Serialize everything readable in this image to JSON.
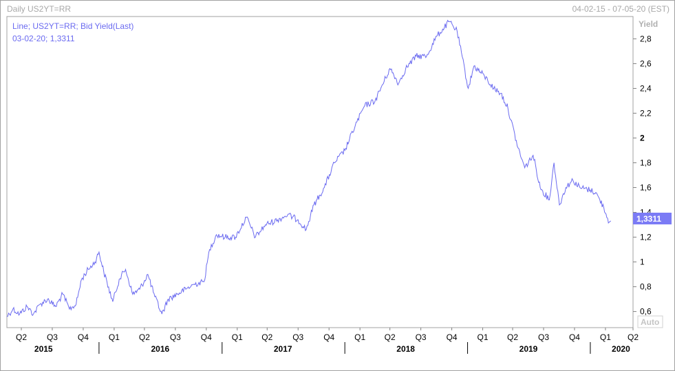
{
  "header": {
    "title": "Daily US2YT=RR",
    "date_range": "04-02-15 - 07-05-20 (EST)"
  },
  "legend": {
    "line1": "Line; US2YT=RR; Bid Yield(Last)",
    "line2": "03-02-20; 1,3311"
  },
  "y_axis": {
    "title": "Yield",
    "auto_label": "Auto",
    "current_value": "1,3311"
  },
  "colors": {
    "line": "#6a6af0",
    "value_box": "#7b7bf5",
    "header_text": "#a8a8a8"
  },
  "chart_data": {
    "type": "line",
    "series": [
      {
        "name": "US2YT=RR",
        "points": [
          [
            "2015-04-02",
            0.56
          ],
          [
            "2015-04-20",
            0.62
          ],
          [
            "2015-05-10",
            0.58
          ],
          [
            "2015-06-01",
            0.64
          ],
          [
            "2015-06-20",
            0.58
          ],
          [
            "2015-07-10",
            0.66
          ],
          [
            "2015-08-01",
            0.7
          ],
          [
            "2015-08-25",
            0.64
          ],
          [
            "2015-09-15",
            0.74
          ],
          [
            "2015-10-05",
            0.62
          ],
          [
            "2015-10-25",
            0.66
          ],
          [
            "2015-11-10",
            0.86
          ],
          [
            "2015-11-30",
            0.94
          ],
          [
            "2015-12-20",
            1.0
          ],
          [
            "2016-01-01",
            1.08
          ],
          [
            "2016-01-15",
            0.92
          ],
          [
            "2016-02-11",
            0.68
          ],
          [
            "2016-03-01",
            0.86
          ],
          [
            "2016-03-20",
            0.94
          ],
          [
            "2016-04-10",
            0.74
          ],
          [
            "2016-05-01",
            0.78
          ],
          [
            "2016-05-25",
            0.9
          ],
          [
            "2016-06-15",
            0.72
          ],
          [
            "2016-07-06",
            0.58
          ],
          [
            "2016-07-25",
            0.7
          ],
          [
            "2016-08-20",
            0.74
          ],
          [
            "2016-09-15",
            0.78
          ],
          [
            "2016-10-10",
            0.82
          ],
          [
            "2016-11-08",
            0.84
          ],
          [
            "2016-11-25",
            1.1
          ],
          [
            "2016-12-15",
            1.22
          ],
          [
            "2017-01-10",
            1.2
          ],
          [
            "2017-02-10",
            1.2
          ],
          [
            "2017-03-14",
            1.36
          ],
          [
            "2017-04-10",
            1.2
          ],
          [
            "2017-05-10",
            1.3
          ],
          [
            "2017-06-15",
            1.34
          ],
          [
            "2017-07-15",
            1.38
          ],
          [
            "2017-08-15",
            1.34
          ],
          [
            "2017-09-08",
            1.26
          ],
          [
            "2017-10-01",
            1.46
          ],
          [
            "2017-11-01",
            1.6
          ],
          [
            "2017-12-01",
            1.8
          ],
          [
            "2018-01-01",
            1.9
          ],
          [
            "2018-02-01",
            2.1
          ],
          [
            "2018-03-01",
            2.26
          ],
          [
            "2018-04-01",
            2.3
          ],
          [
            "2018-05-15",
            2.56
          ],
          [
            "2018-06-10",
            2.44
          ],
          [
            "2018-07-01",
            2.56
          ],
          [
            "2018-08-01",
            2.66
          ],
          [
            "2018-09-01",
            2.66
          ],
          [
            "2018-10-01",
            2.82
          ],
          [
            "2018-11-08",
            2.94
          ],
          [
            "2018-12-01",
            2.86
          ],
          [
            "2019-01-03",
            2.4
          ],
          [
            "2019-01-20",
            2.58
          ],
          [
            "2019-02-20",
            2.5
          ],
          [
            "2019-03-20",
            2.4
          ],
          [
            "2019-04-10",
            2.36
          ],
          [
            "2019-05-01",
            2.24
          ],
          [
            "2019-05-31",
            1.92
          ],
          [
            "2019-06-20",
            1.76
          ],
          [
            "2019-07-15",
            1.86
          ],
          [
            "2019-08-05",
            1.6
          ],
          [
            "2019-09-01",
            1.5
          ],
          [
            "2019-09-15",
            1.8
          ],
          [
            "2019-10-01",
            1.46
          ],
          [
            "2019-10-20",
            1.6
          ],
          [
            "2019-11-10",
            1.66
          ],
          [
            "2019-12-01",
            1.6
          ],
          [
            "2020-01-01",
            1.58
          ],
          [
            "2020-01-17",
            1.56
          ],
          [
            "2020-02-10",
            1.44
          ],
          [
            "2020-02-26",
            1.32
          ],
          [
            "2020-03-02",
            1.3311
          ]
        ]
      }
    ],
    "x_start": "2015-04-02",
    "x_end": "2020-05-07",
    "ylim": [
      0.47,
      2.98
    ],
    "yticks": [
      {
        "v": 0.6,
        "label": "0,6"
      },
      {
        "v": 0.8,
        "label": "0,8"
      },
      {
        "v": 1.0,
        "label": "1"
      },
      {
        "v": 1.2,
        "label": "1,2"
      },
      {
        "v": 1.4,
        "label": "1,4"
      },
      {
        "v": 1.6,
        "label": "1,6"
      },
      {
        "v": 1.8,
        "label": "1,8"
      },
      {
        "v": 2.0,
        "label": "2"
      },
      {
        "v": 2.2,
        "label": "2,2"
      },
      {
        "v": 2.4,
        "label": "2,4"
      },
      {
        "v": 2.6,
        "label": "2,6"
      },
      {
        "v": 2.8,
        "label": "2,8"
      }
    ],
    "quarter_ticks": [
      {
        "date": "2015-05-15",
        "label": "Q2"
      },
      {
        "date": "2015-08-15",
        "label": "Q3"
      },
      {
        "date": "2015-11-15",
        "label": "Q4"
      },
      {
        "date": "2016-02-15",
        "label": "Q1"
      },
      {
        "date": "2016-05-15",
        "label": "Q2"
      },
      {
        "date": "2016-08-15",
        "label": "Q3"
      },
      {
        "date": "2016-11-15",
        "label": "Q4"
      },
      {
        "date": "2017-02-15",
        "label": "Q1"
      },
      {
        "date": "2017-05-15",
        "label": "Q2"
      },
      {
        "date": "2017-08-15",
        "label": "Q3"
      },
      {
        "date": "2017-11-15",
        "label": "Q4"
      },
      {
        "date": "2018-02-15",
        "label": "Q1"
      },
      {
        "date": "2018-05-15",
        "label": "Q2"
      },
      {
        "date": "2018-08-15",
        "label": "Q3"
      },
      {
        "date": "2018-11-15",
        "label": "Q4"
      },
      {
        "date": "2019-02-15",
        "label": "Q1"
      },
      {
        "date": "2019-05-15",
        "label": "Q2"
      },
      {
        "date": "2019-08-15",
        "label": "Q3"
      },
      {
        "date": "2019-11-15",
        "label": "Q4"
      },
      {
        "date": "2020-02-15",
        "label": "Q1"
      },
      {
        "date": "2020-05-07",
        "label": "Q2"
      }
    ],
    "year_labels": [
      {
        "date": "2015-07-20",
        "label": "2015"
      },
      {
        "date": "2016-07-01",
        "label": "2016"
      },
      {
        "date": "2017-07-01",
        "label": "2017"
      },
      {
        "date": "2018-07-01",
        "label": "2018"
      },
      {
        "date": "2019-07-01",
        "label": "2019"
      },
      {
        "date": "2020-04-01",
        "label": "2020"
      }
    ],
    "year_separators": [
      "2016-01-01",
      "2017-01-01",
      "2018-01-01",
      "2019-01-01",
      "2020-01-01"
    ],
    "grid": false
  }
}
